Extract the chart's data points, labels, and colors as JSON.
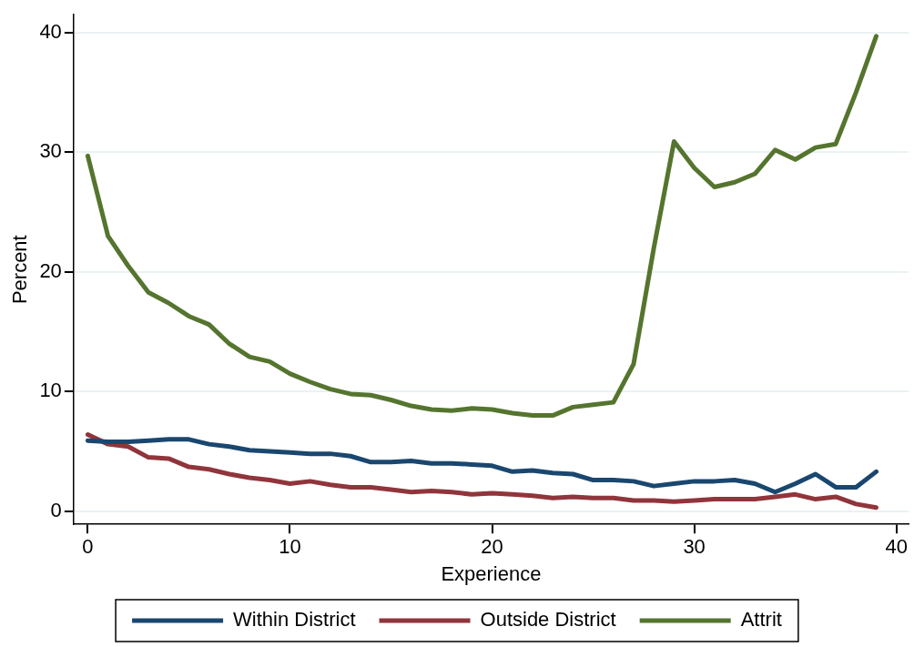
{
  "chart_data": {
    "type": "line",
    "xlabel": "Experience",
    "ylabel": "Percent",
    "x": [
      0,
      1,
      2,
      3,
      4,
      5,
      6,
      7,
      8,
      9,
      10,
      11,
      12,
      13,
      14,
      15,
      16,
      17,
      18,
      19,
      20,
      21,
      22,
      23,
      24,
      25,
      26,
      27,
      28,
      29,
      30,
      31,
      32,
      33,
      34,
      35,
      36,
      37,
      38,
      39
    ],
    "series": [
      {
        "name": "Within District",
        "color": "#1a476f",
        "values": [
          5.9,
          5.8,
          5.8,
          5.9,
          6.0,
          6.0,
          5.6,
          5.4,
          5.1,
          5.0,
          4.9,
          4.8,
          4.8,
          4.6,
          4.1,
          4.1,
          4.2,
          4.0,
          4.0,
          3.9,
          3.8,
          3.3,
          3.4,
          3.2,
          3.1,
          2.6,
          2.6,
          2.5,
          2.1,
          2.3,
          2.5,
          2.5,
          2.6,
          2.3,
          1.6,
          2.3,
          3.1,
          2.0,
          2.0,
          3.3
        ]
      },
      {
        "name": "Outside District",
        "color": "#90353b",
        "values": [
          6.4,
          5.6,
          5.4,
          4.5,
          4.4,
          3.7,
          3.5,
          3.1,
          2.8,
          2.6,
          2.3,
          2.5,
          2.2,
          2.0,
          2.0,
          1.8,
          1.6,
          1.7,
          1.6,
          1.4,
          1.5,
          1.4,
          1.3,
          1.1,
          1.2,
          1.1,
          1.1,
          0.9,
          0.9,
          0.8,
          0.9,
          1.0,
          1.0,
          1.0,
          1.2,
          1.4,
          1.0,
          1.2,
          0.6,
          0.3
        ]
      },
      {
        "name": "Attrit",
        "color": "#55752f",
        "values": [
          29.7,
          23.0,
          20.5,
          18.3,
          17.4,
          16.3,
          15.6,
          14.0,
          12.9,
          12.5,
          11.5,
          10.8,
          10.2,
          9.8,
          9.7,
          9.3,
          8.8,
          8.5,
          8.4,
          8.6,
          8.5,
          8.2,
          8.0,
          8.0,
          8.7,
          8.9,
          9.1,
          12.3,
          22.0,
          30.9,
          28.7,
          27.1,
          27.5,
          28.2,
          30.2,
          29.4,
          30.4,
          30.7,
          35.0,
          39.7
        ]
      }
    ],
    "xlim": [
      -0.7,
      40.6
    ],
    "ylim": [
      -1.1,
      41.5
    ],
    "xticks": [
      0,
      10,
      20,
      30,
      40
    ],
    "yticks": [
      0,
      10,
      20,
      30,
      40
    ],
    "grid": "y",
    "legend": "bottom",
    "marker": "none",
    "line_style": "solid"
  }
}
